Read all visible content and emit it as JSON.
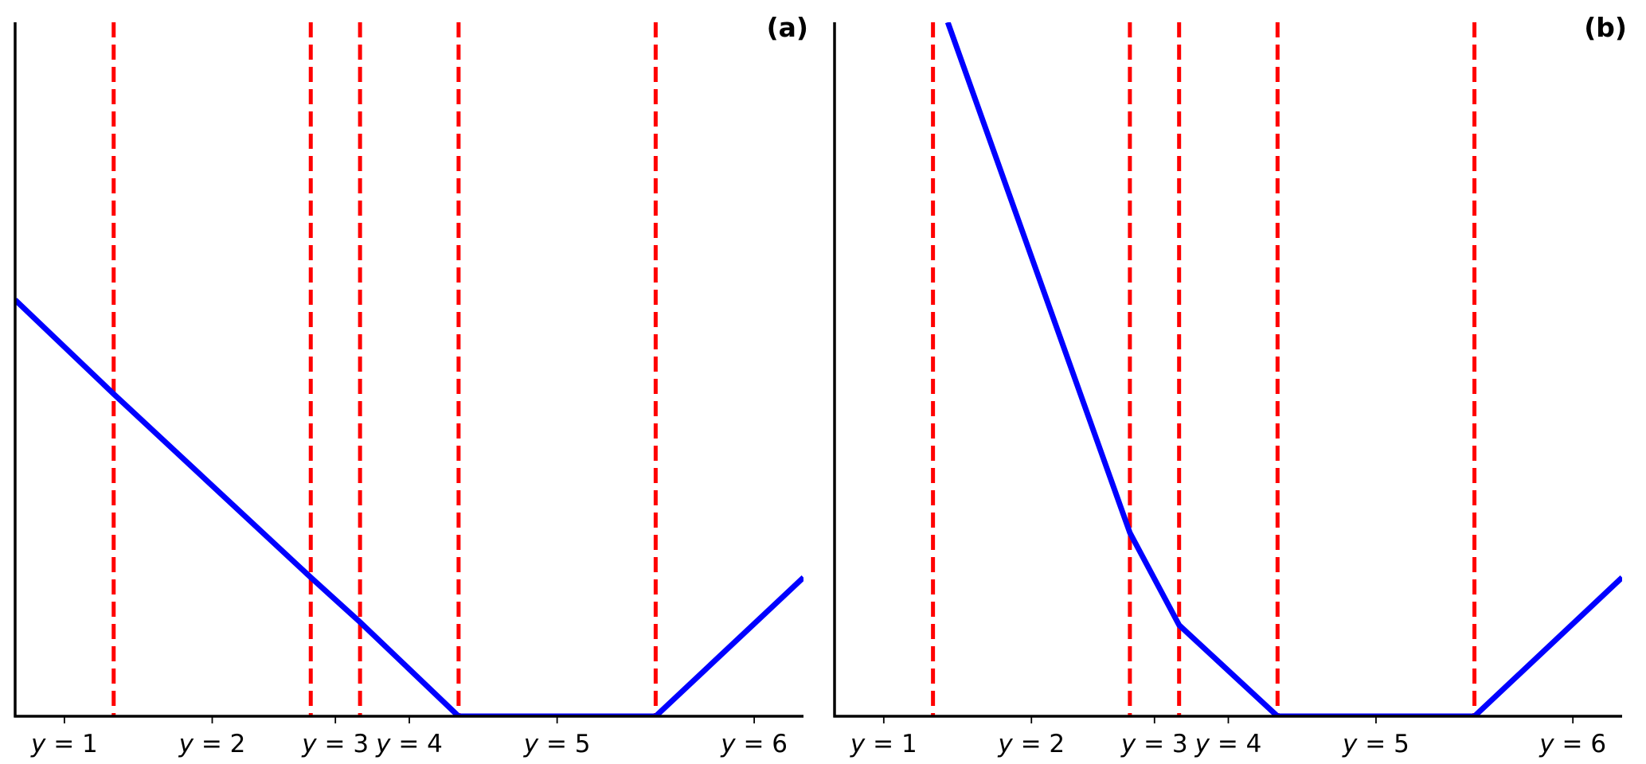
{
  "chart_data": [
    {
      "type": "line",
      "panel_label": "(a)",
      "xlim": [
        0,
        8
      ],
      "ylim": [
        0,
        7
      ],
      "x_ticks": [
        {
          "x": 0.5,
          "var": "y",
          "rest": " = 1"
        },
        {
          "x": 2.0,
          "var": "y",
          "rest": " = 2"
        },
        {
          "x": 3.25,
          "var": "y",
          "rest": " = 3"
        },
        {
          "x": 4.0,
          "var": "y",
          "rest": " = 4"
        },
        {
          "x": 5.5,
          "var": "y",
          "rest": " = 5"
        },
        {
          "x": 7.5,
          "var": "y",
          "rest": " = 6"
        }
      ],
      "thresholds": [
        1.0,
        3.0,
        3.5,
        4.5,
        6.5
      ],
      "series": [
        {
          "x": [
            0,
            1.0,
            3.0,
            3.5,
            4.5,
            6.5,
            8.0
          ],
          "y": [
            4.2,
            3.25,
            1.4,
            0.95,
            0,
            0,
            1.4
          ]
        }
      ],
      "line_color": "#0000ff",
      "threshold_color": "#ff0000"
    },
    {
      "type": "line",
      "panel_label": "(b)",
      "xlim": [
        0,
        8
      ],
      "ylim": [
        0,
        7
      ],
      "x_ticks": [
        {
          "x": 0.5,
          "var": "y",
          "rest": " = 1"
        },
        {
          "x": 2.0,
          "var": "y",
          "rest": " = 2"
        },
        {
          "x": 3.25,
          "var": "y",
          "rest": " = 3"
        },
        {
          "x": 4.0,
          "var": "y",
          "rest": " = 4"
        },
        {
          "x": 5.5,
          "var": "y",
          "rest": " = 5"
        },
        {
          "x": 7.5,
          "var": "y",
          "rest": " = 6"
        }
      ],
      "thresholds": [
        1.0,
        3.0,
        3.5,
        4.5,
        6.5
      ],
      "series": [
        {
          "x": [
            1.15,
            3.0,
            3.5,
            4.5,
            6.5,
            8.0
          ],
          "y": [
            7.0,
            1.85,
            0.92,
            0,
            0,
            1.4
          ]
        }
      ],
      "line_color": "#0000ff",
      "threshold_color": "#ff0000"
    }
  ]
}
